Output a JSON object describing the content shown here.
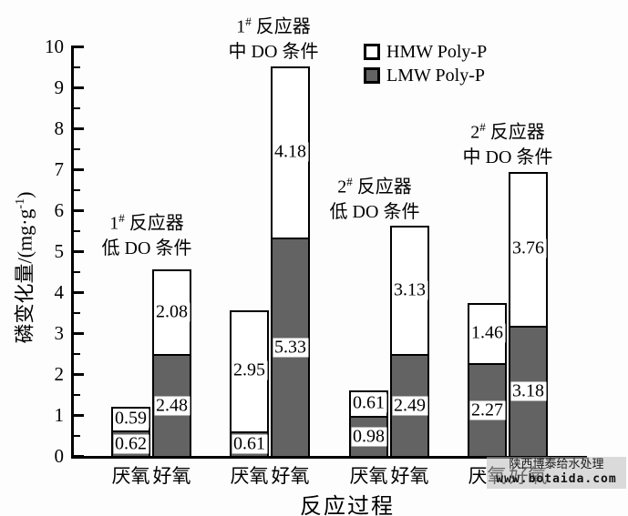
{
  "chart_data": {
    "type": "bar",
    "stacked": true,
    "grid": false,
    "legend_position": "top-center",
    "xlabel": "反应过程",
    "ylabel_prefix": "磷变化量/(mg·g",
    "ylabel_sup": "-1",
    "ylabel_suffix": ")",
    "ylim": [
      0,
      10
    ],
    "y_major_ticks": [
      0,
      1,
      2,
      3,
      4,
      5,
      6,
      7,
      8,
      9,
      10
    ],
    "y_minor_step": 0.5,
    "legend": [
      {
        "label": "HMW Poly-P",
        "fill": "#ffffff"
      },
      {
        "label": "LMW Poly-P",
        "fill": "#636363"
      }
    ],
    "groups": [
      {
        "reactor_num": "1",
        "reactor_sup": "#",
        "reactor_word": "反应器",
        "condition": "低 DO 条件",
        "bars": [
          {
            "category": "厌氧",
            "segments": [
              {
                "series": "LMW Poly-P",
                "value": 0.62
              },
              {
                "series": "HMW Poly-P",
                "value": 0.59
              }
            ]
          },
          {
            "category": "好氧",
            "segments": [
              {
                "series": "LMW Poly-P",
                "value": 2.48
              },
              {
                "series": "HMW Poly-P",
                "value": 2.08
              }
            ]
          }
        ]
      },
      {
        "reactor_num": "1",
        "reactor_sup": "#",
        "reactor_word": "反应器",
        "condition": "中 DO 条件",
        "bars": [
          {
            "category": "厌氧",
            "segments": [
              {
                "series": "LMW Poly-P",
                "value": 0.61
              },
              {
                "series": "HMW Poly-P",
                "value": 2.95
              }
            ]
          },
          {
            "category": "好氧",
            "segments": [
              {
                "series": "LMW Poly-P",
                "value": 5.33
              },
              {
                "series": "HMW Poly-P",
                "value": 4.18
              }
            ]
          }
        ]
      },
      {
        "reactor_num": "2",
        "reactor_sup": "#",
        "reactor_word": "反应器",
        "condition": "低 DO 条件",
        "bars": [
          {
            "category": "厌氧",
            "segments": [
              {
                "series": "LMW Poly-P",
                "value": 0.98
              },
              {
                "series": "HMW Poly-P",
                "value": 0.61
              }
            ]
          },
          {
            "category": "好氧",
            "segments": [
              {
                "series": "LMW Poly-P",
                "value": 2.49
              },
              {
                "series": "HMW Poly-P",
                "value": 3.13
              }
            ]
          }
        ]
      },
      {
        "reactor_num": "2",
        "reactor_sup": "#",
        "reactor_word": "反应器",
        "condition": "中 DO 条件",
        "bars": [
          {
            "category": "厌氧",
            "segments": [
              {
                "series": "LMW Poly-P",
                "value": 2.27
              },
              {
                "series": "HMW Poly-P",
                "value": 1.46
              }
            ]
          },
          {
            "category": "好氧",
            "segments": [
              {
                "series": "LMW Poly-P",
                "value": 3.18
              },
              {
                "series": "HMW Poly-P",
                "value": 3.76
              }
            ]
          }
        ]
      }
    ]
  },
  "watermark": {
    "line1": "陕西博泰给水处理",
    "line2": "www.botaida.com"
  }
}
